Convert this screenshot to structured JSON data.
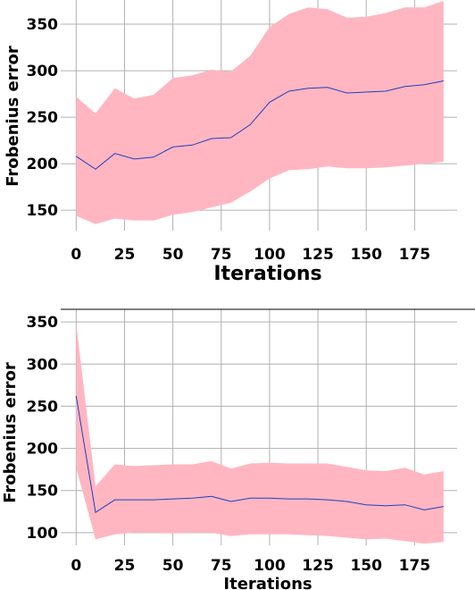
{
  "chart_data": [
    {
      "type": "line",
      "title": "",
      "xlabel": "Iterations",
      "ylabel": "Frobenius error",
      "xlim": [
        -8,
        197
      ],
      "ylim": [
        128,
        376
      ],
      "grid": true,
      "xticks": [
        0,
        25,
        50,
        75,
        100,
        125,
        150,
        175
      ],
      "yticks": [
        150,
        200,
        250,
        300,
        350
      ],
      "band_color": "#ffb6c1",
      "line_color": "#1f3fbf",
      "x": [
        0,
        10,
        20,
        30,
        40,
        50,
        60,
        70,
        80,
        90,
        100,
        110,
        120,
        130,
        140,
        150,
        160,
        170,
        180,
        190
      ],
      "series": [
        {
          "values": [
            208,
            194,
            211,
            205,
            207,
            218,
            220,
            227,
            228,
            242,
            266,
            278,
            281,
            282,
            276,
            277,
            278,
            283,
            285,
            289
          ],
          "lower": [
            144,
            135,
            141,
            139,
            139,
            145,
            148,
            153,
            158,
            170,
            184,
            193,
            194,
            197,
            195,
            195,
            196,
            198,
            200,
            202
          ],
          "upper": [
            272,
            254,
            281,
            270,
            274,
            292,
            295,
            301,
            299,
            316,
            347,
            361,
            368,
            366,
            357,
            358,
            362,
            368,
            368,
            375
          ]
        }
      ]
    },
    {
      "type": "line",
      "title": "",
      "xlabel": "Iterations",
      "ylabel": "Frobenius error",
      "xlim": [
        -8,
        197
      ],
      "ylim": [
        85,
        365
      ],
      "grid": true,
      "xticks": [
        0,
        25,
        50,
        75,
        100,
        125,
        150,
        175
      ],
      "yticks": [
        100,
        150,
        200,
        250,
        300,
        350
      ],
      "band_color": "#ffb6c1",
      "line_color": "#1f3fbf",
      "x": [
        0,
        10,
        20,
        30,
        40,
        50,
        60,
        70,
        80,
        90,
        100,
        110,
        120,
        130,
        140,
        150,
        160,
        170,
        180,
        190
      ],
      "series": [
        {
          "values": [
            262,
            124,
            139,
            139,
            139,
            140,
            141,
            143,
            137,
            141,
            141,
            140,
            140,
            139,
            137,
            133,
            132,
            133,
            127,
            131
          ],
          "lower": [
            177,
            92,
            98,
            100,
            100,
            99,
            100,
            100,
            96,
            98,
            98,
            98,
            97,
            96,
            94,
            92,
            93,
            90,
            87,
            89
          ],
          "upper": [
            348,
            155,
            181,
            179,
            180,
            181,
            181,
            185,
            176,
            182,
            183,
            182,
            182,
            182,
            178,
            174,
            173,
            177,
            169,
            173
          ]
        }
      ]
    }
  ]
}
